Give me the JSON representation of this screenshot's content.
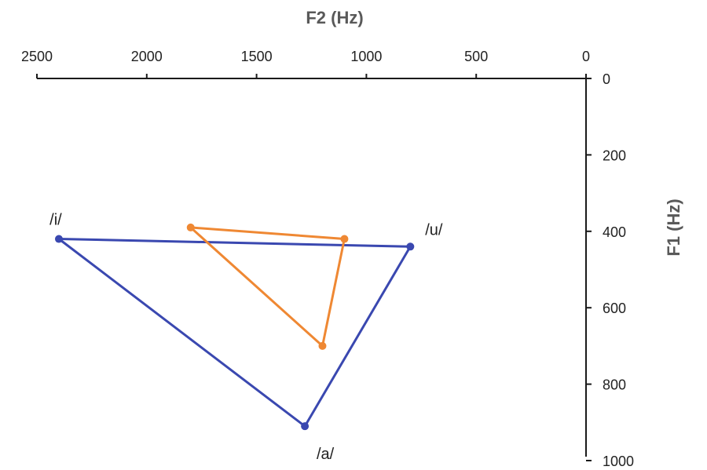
{
  "chart_data": {
    "type": "scatter",
    "xlabel": "F2 (Hz)",
    "ylabel": "F1 (Hz)",
    "xlim": [
      2500,
      0
    ],
    "ylim": [
      0,
      1000
    ],
    "x_ticks": [
      "2500",
      "2000",
      "1500",
      "1000",
      "500",
      "0"
    ],
    "y_ticks": [
      "0",
      "200",
      "400",
      "600",
      "800",
      "1000"
    ],
    "x_axis_position": "top",
    "y_axis_position": "right",
    "x_reversed": true,
    "y_reversed": true,
    "grid": false,
    "series": [
      {
        "color": "#3a48b0",
        "closed": true,
        "points": [
          {
            "x": 2400,
            "y": 420,
            "label": "/i/"
          },
          {
            "x": 800,
            "y": 440,
            "label": "/u/"
          },
          {
            "x": 1280,
            "y": 910,
            "label": "/a/"
          }
        ]
      },
      {
        "color": "#ef8833",
        "closed": true,
        "points": [
          {
            "x": 1800,
            "y": 390
          },
          {
            "x": 1100,
            "y": 420
          },
          {
            "x": 1200,
            "y": 700
          }
        ]
      }
    ]
  }
}
